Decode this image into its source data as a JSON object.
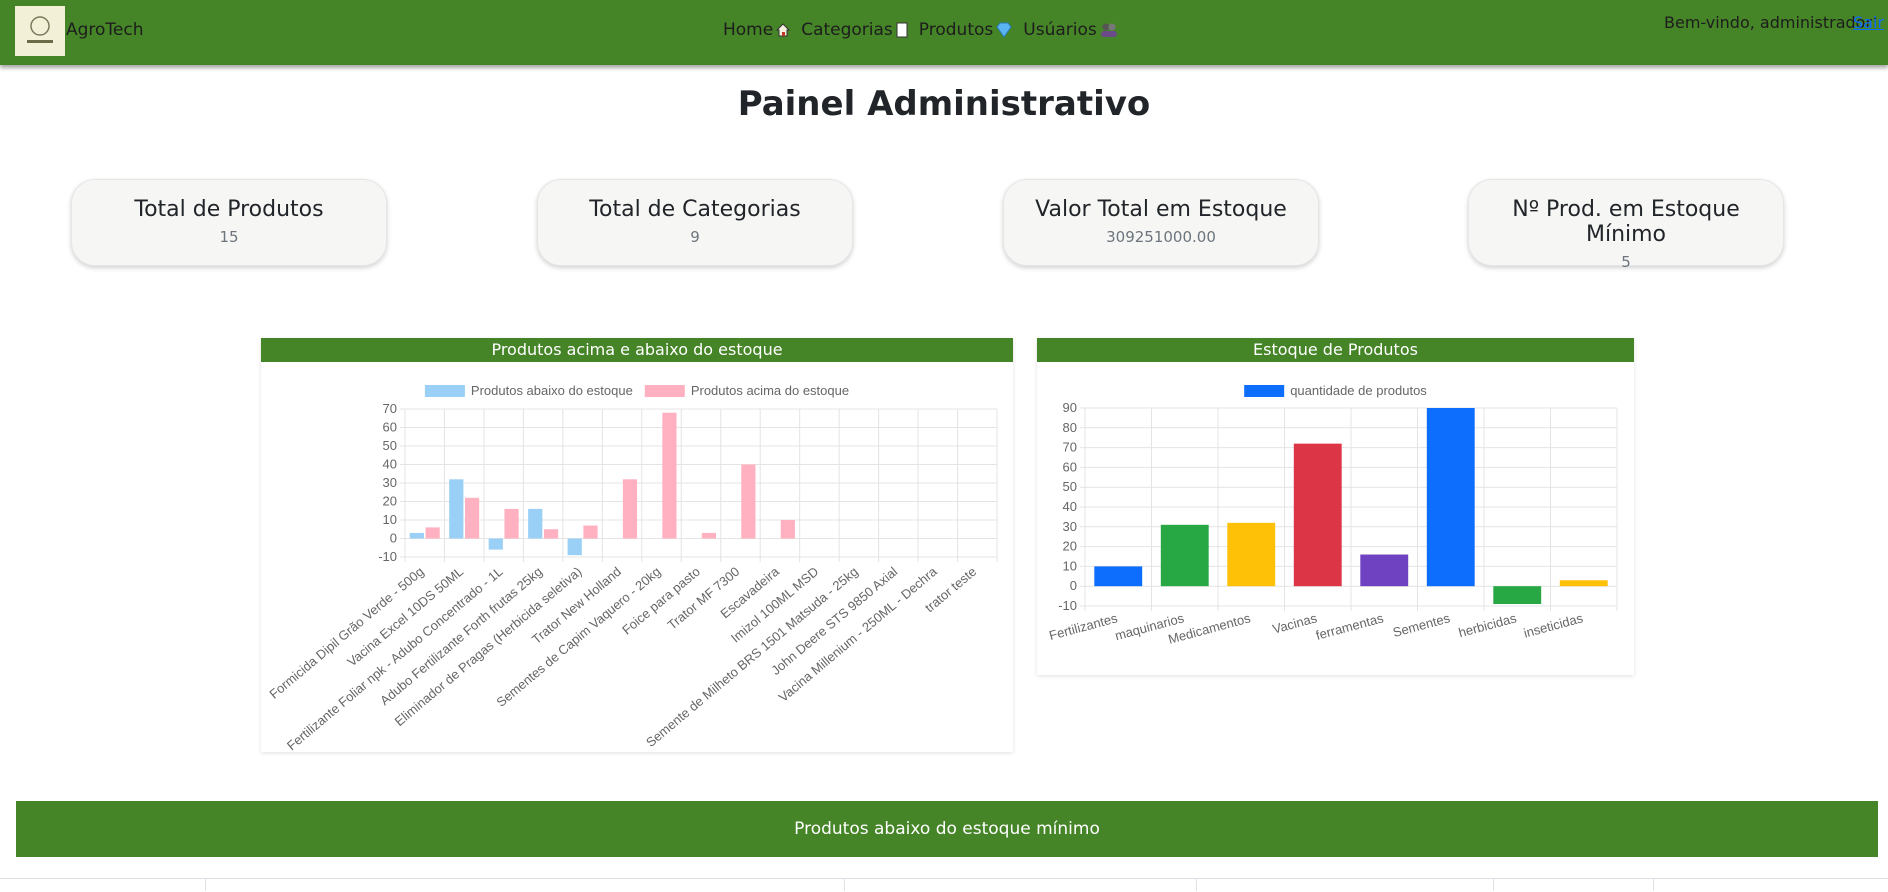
{
  "header": {
    "brand": "AgroTech",
    "nav": [
      "Home",
      "Categorias",
      "Produtos",
      "Usúarios"
    ],
    "welcome": "Bem-vindo, administrador!",
    "logout": "Sair"
  },
  "page_title": "Painel Administrativo",
  "cards": [
    {
      "title": "Total de Produtos",
      "value": "15"
    },
    {
      "title": "Total de Categorias",
      "value": "9"
    },
    {
      "title": "Valor Total em Estoque",
      "value": "309251000.00"
    },
    {
      "title": "Nº Prod. em Estoque Mínimo",
      "value": "5"
    }
  ],
  "chart_data": [
    {
      "type": "bar",
      "title": "Produtos acima e abaixo do estoque",
      "categories": [
        "Formicida Dipil Grão Verde - 500g",
        "Vacina Excel 10DS 50ML",
        "Fertilizante Foliar npk - Adubo Concentrado - 1L",
        "Adubo Fertilizante Forth frutas 25kg",
        "Eliminador de Pragas (Herbicida seletiva)",
        "Trator New Holland",
        "Sementes de Capim Vaquero - 20kg",
        "Foice para pasto",
        "Trator MF 7300",
        "Escavadeira",
        "Imizol 100ML MSD",
        "Semente de Milheto BRS 1501 Matsuda - 25kg",
        "John Deere STS 9850 Axial",
        "Vacina Millenium - 250ML - Dechra",
        "trator teste"
      ],
      "series": [
        {
          "name": "Produtos abaixo do estoque",
          "color": "#9ad0f5",
          "values": [
            3,
            32,
            -6,
            16,
            -9,
            0,
            0,
            0,
            0,
            0,
            0,
            0,
            0,
            0,
            0
          ]
        },
        {
          "name": "Produtos acima do estoque",
          "color": "#ffb1c1",
          "values": [
            6,
            22,
            16,
            5,
            7,
            32,
            68,
            3,
            40,
            10,
            0,
            0,
            0,
            0,
            0
          ]
        }
      ],
      "ylim": [
        -10,
        70
      ],
      "yticks": [
        -10,
        0,
        10,
        20,
        30,
        40,
        50,
        60,
        70
      ],
      "grid": true
    },
    {
      "type": "bar",
      "title": "Estoque de Produtos",
      "categories": [
        "Fertilizantes",
        "maquinarios",
        "Medicamentos",
        "Vacinas",
        "ferramentas",
        "Sementes",
        "herbicidas",
        "inseticidas"
      ],
      "series": [
        {
          "name": "quantidade de produtos",
          "color": "#0d6efd",
          "colors": [
            "#0d6efd",
            "#28a745",
            "#ffc107",
            "#dc3545",
            "#6f42c1",
            "#0d6efd",
            "#28a745",
            "#ffc107"
          ],
          "values": [
            10,
            31,
            32,
            72,
            16,
            90,
            -9,
            3
          ]
        }
      ],
      "ylim": [
        -10,
        90
      ],
      "yticks": [
        -10,
        0,
        10,
        20,
        30,
        40,
        50,
        60,
        70,
        80,
        90
      ],
      "grid": true
    }
  ],
  "section_title": "Produtos abaixo do estoque mínimo"
}
